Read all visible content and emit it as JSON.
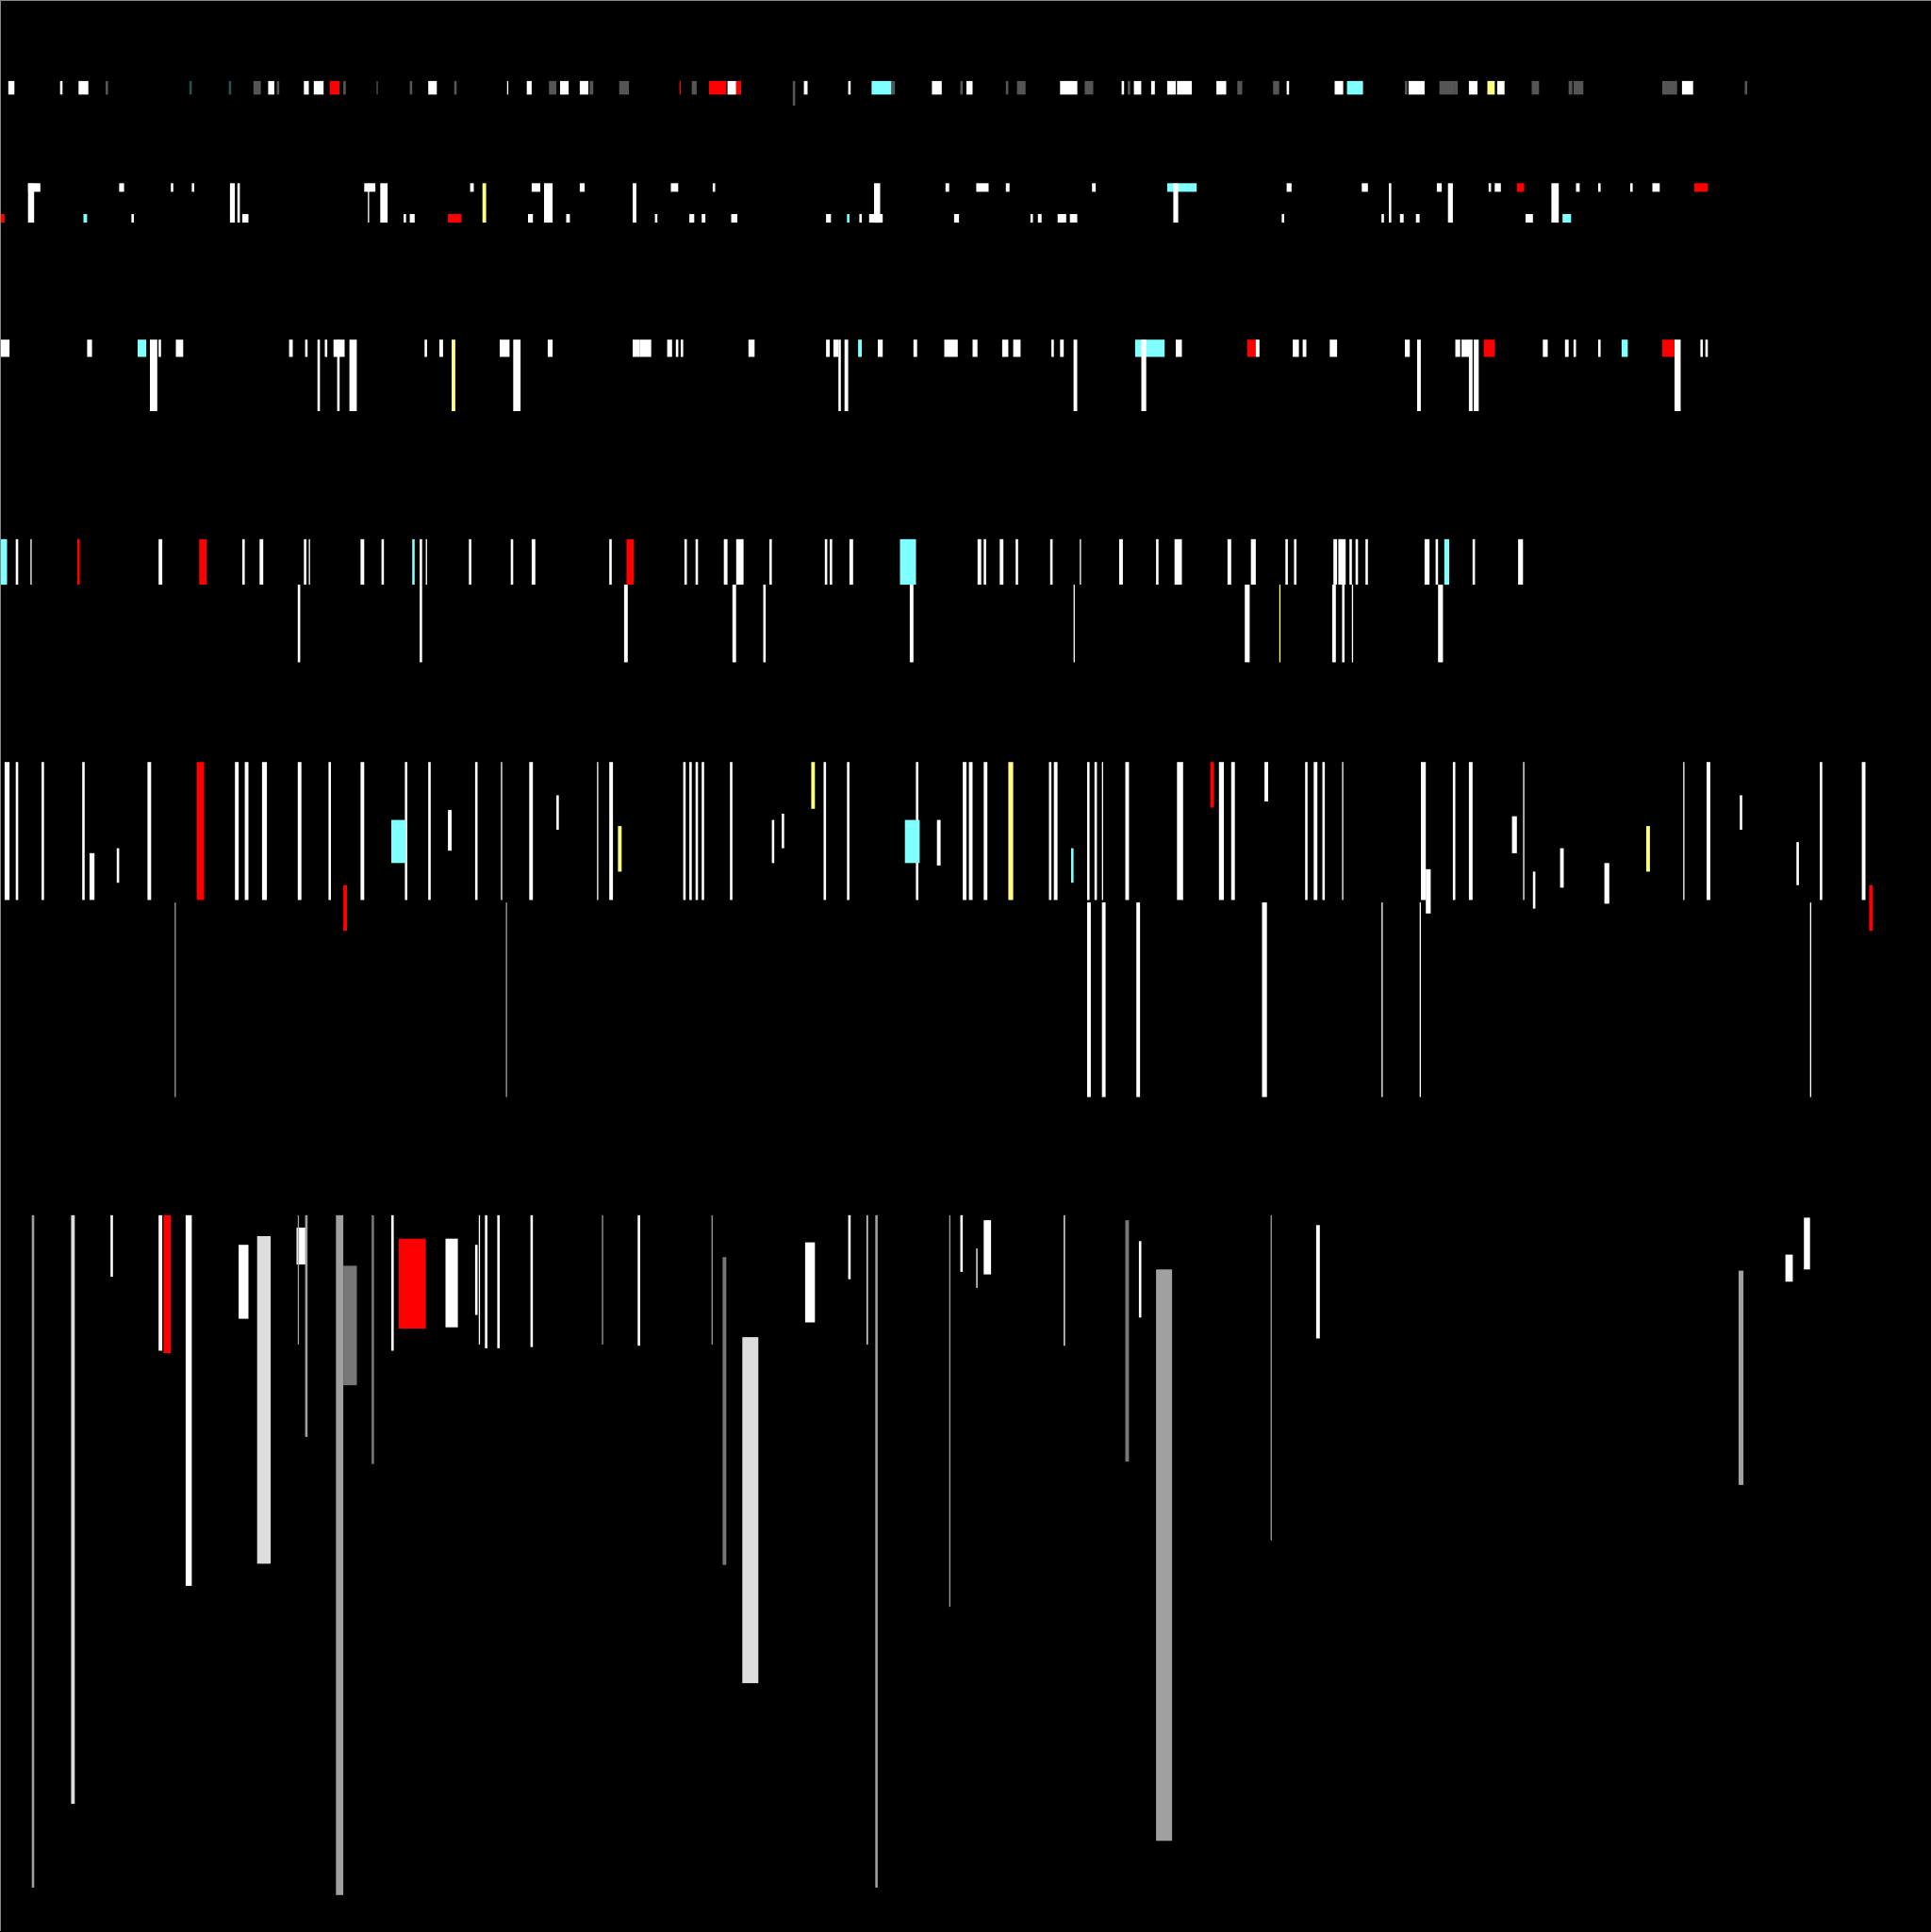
{
  "palette": {
    "background": "#000000",
    "white": "#ffffff",
    "cyan": "#80ffff",
    "red": "#ff0000",
    "yellow": "#ffff80",
    "dark_gray": "#555555",
    "teal": "#2a5050",
    "light_gray": "#dddddd",
    "mid_gray": "#a0a0a0",
    "gray": "#777777"
  }
}
